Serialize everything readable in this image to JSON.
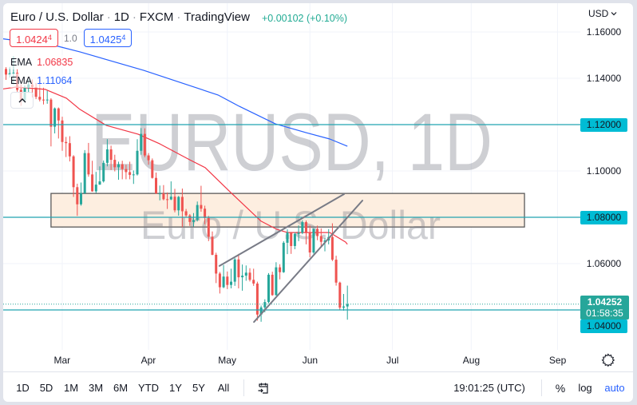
{
  "header": {
    "parts": [
      "Euro / U.S. Dollar",
      "1D",
      "FXCM",
      "TradingView"
    ],
    "separator": "·",
    "change": "+0.00102 (+0.10%)",
    "change_color": "#22ab94"
  },
  "quote": {
    "sell_main": "1.0424",
    "sell_frac": "4",
    "spread": "1.0",
    "buy_main": "1.0425",
    "buy_frac": "4"
  },
  "indicators": [
    {
      "name": "EMA",
      "value": "1.06835",
      "color": "#f23645"
    },
    {
      "name": "EMA",
      "value": "1.11064",
      "color": "#2962ff"
    }
  ],
  "icons": {
    "collapse": "chevron-up-icon",
    "currency_menu": "chevron-down-icon",
    "axis_settings": "gear-icon",
    "go_to_date": "calendar-goto-icon"
  },
  "watermark": {
    "line1": "EURUSD, 1D",
    "line2": "Euro / U.S. Dollar"
  },
  "price_axis": {
    "currency": "USD",
    "labels": [
      {
        "text": "1.16000",
        "value": 1.16,
        "highlight": false
      },
      {
        "text": "1.14000",
        "value": 1.14,
        "highlight": false
      },
      {
        "text": "1.12000",
        "value": 1.12,
        "highlight": true
      },
      {
        "text": "1.10000",
        "value": 1.1,
        "highlight": false
      },
      {
        "text": "1.08000",
        "value": 1.08,
        "highlight": true
      },
      {
        "text": "1.06000",
        "value": 1.06,
        "highlight": false
      },
      {
        "text": "1.04000",
        "value": 1.04,
        "highlight": true
      }
    ],
    "current": {
      "price": "1.04252",
      "countdown": "01:58:35",
      "value": 1.04252
    }
  },
  "time_axis": {
    "labels": [
      {
        "text": "Mar",
        "index": 15
      },
      {
        "text": "Apr",
        "index": 38
      },
      {
        "text": "May",
        "index": 59
      },
      {
        "text": "Jun",
        "index": 81
      },
      {
        "text": "Jul",
        "index": 103
      },
      {
        "text": "Aug",
        "index": 124
      },
      {
        "text": "Sep",
        "index": 147
      }
    ]
  },
  "toolbar": {
    "ranges": [
      "1D",
      "5D",
      "1M",
      "3M",
      "6M",
      "YTD",
      "1Y",
      "5Y",
      "All"
    ],
    "clock": "19:01:25 (UTC)",
    "percent": "%",
    "log": "log",
    "auto": "auto"
  },
  "colors": {
    "up": "#26a69a",
    "down": "#ef5350",
    "ema_fast": "#f23645",
    "ema_slow": "#2962ff",
    "level_line": "#22a3b0",
    "zone_fill": "#fdeee0",
    "zone_border": "#5a5a5a",
    "trendline": "#787b86",
    "grid": "#f0f3fa",
    "watermark": "#787b86"
  },
  "chart_data": {
    "type": "candlestick",
    "title": "Euro / U.S. Dollar · 1D · FXCM · TradingView",
    "xlabel": "",
    "ylabel": "USD",
    "ylim": [
      1.0228,
      1.1724
    ],
    "y_ticks": [
      1.16,
      1.14,
      1.12,
      1.1,
      1.08,
      1.06,
      1.04
    ],
    "x_ticks": [
      {
        "label": "Mar",
        "index": 15
      },
      {
        "label": "Apr",
        "index": 38
      },
      {
        "label": "May",
        "index": 59
      },
      {
        "label": "Jun",
        "index": 81
      },
      {
        "label": "Jul",
        "index": 103
      },
      {
        "label": "Aug",
        "index": 124
      },
      {
        "label": "Sep",
        "index": 147
      }
    ],
    "grid": true,
    "candle_columns": [
      "open",
      "high",
      "low",
      "close"
    ],
    "candles": [
      [
        1.144,
        1.1448,
        1.1393,
        1.1416
      ],
      [
        1.1416,
        1.1449,
        1.1403,
        1.1422
      ],
      [
        1.1422,
        1.1495,
        1.1374,
        1.1424
      ],
      [
        1.1424,
        1.144,
        1.1342,
        1.135
      ],
      [
        1.135,
        1.1374,
        1.1281,
        1.1306
      ],
      [
        1.1306,
        1.1369,
        1.1296,
        1.1358
      ],
      [
        1.1358,
        1.1395,
        1.1337,
        1.1373
      ],
      [
        1.1373,
        1.1395,
        1.1317,
        1.1362
      ],
      [
        1.1362,
        1.138,
        1.131,
        1.132
      ],
      [
        1.132,
        1.1395,
        1.13,
        1.1308
      ],
      [
        1.1308,
        1.136,
        1.1287,
        1.1307
      ],
      [
        1.1307,
        1.1346,
        1.129,
        1.1308
      ],
      [
        1.1308,
        1.1314,
        1.1106,
        1.1191
      ],
      [
        1.1191,
        1.1274,
        1.1162,
        1.127
      ],
      [
        1.127,
        1.1274,
        1.114,
        1.1218
      ],
      [
        1.1218,
        1.1234,
        1.1087,
        1.1125
      ],
      [
        1.1125,
        1.1147,
        1.106,
        1.112
      ],
      [
        1.112,
        1.115,
        1.1041,
        1.1063
      ],
      [
        1.1063,
        1.1068,
        1.0888,
        1.093
      ],
      [
        1.093,
        1.0945,
        1.0806,
        1.0856
      ],
      [
        1.0856,
        1.095,
        1.085,
        1.0904
      ],
      [
        1.0904,
        1.109,
        1.09,
        1.1077
      ],
      [
        1.1077,
        1.1121,
        1.0975,
        1.0985
      ],
      [
        1.0985,
        1.1044,
        1.091,
        1.0912
      ],
      [
        1.0912,
        1.0996,
        1.0905,
        1.0941
      ],
      [
        1.0941,
        1.102,
        1.094,
        1.0955
      ],
      [
        1.0955,
        1.1045,
        1.095,
        1.1035
      ],
      [
        1.1035,
        1.1137,
        1.102,
        1.1093
      ],
      [
        1.1093,
        1.1109,
        1.1004,
        1.1048
      ],
      [
        1.1048,
        1.107,
        1.0998,
        1.1016
      ],
      [
        1.1016,
        1.104,
        1.0962,
        1.1029
      ],
      [
        1.1029,
        1.1044,
        1.0964,
        1.1008
      ],
      [
        1.1008,
        1.1027,
        1.0964,
        1.0995
      ],
      [
        1.0995,
        1.104,
        1.0964,
        1.0983
      ],
      [
        1.0983,
        1.1002,
        1.0944,
        1.0985
      ],
      [
        1.0985,
        1.1137,
        1.098,
        1.1087
      ],
      [
        1.1087,
        1.1185,
        1.107,
        1.116
      ],
      [
        1.116,
        1.1184,
        1.1059,
        1.1067
      ],
      [
        1.1067,
        1.1077,
        1.1027,
        1.1046
      ],
      [
        1.1046,
        1.1054,
        1.0967,
        1.097
      ],
      [
        1.097,
        1.0993,
        1.0901,
        1.0903
      ],
      [
        1.0903,
        1.0937,
        1.0873,
        1.0903
      ],
      [
        1.0903,
        1.0939,
        1.0873,
        1.0878
      ],
      [
        1.0878,
        1.0907,
        1.0836,
        1.0877
      ],
      [
        1.0877,
        1.0955,
        1.0874,
        1.0889
      ],
      [
        1.0889,
        1.0923,
        1.0821,
        1.083
      ],
      [
        1.083,
        1.0892,
        1.0807,
        1.0888
      ],
      [
        1.0888,
        1.0924,
        1.0757,
        1.0826
      ],
      [
        1.0826,
        1.0836,
        1.08,
        1.0808
      ],
      [
        1.0808,
        1.0814,
        1.0763,
        1.078
      ],
      [
        1.078,
        1.0818,
        1.076,
        1.0788
      ],
      [
        1.0788,
        1.0868,
        1.0782,
        1.0853
      ],
      [
        1.0853,
        1.0936,
        1.0824,
        1.0837
      ],
      [
        1.0837,
        1.085,
        1.077,
        1.0797
      ],
      [
        1.0797,
        1.0806,
        1.0697,
        1.0716
      ],
      [
        1.0716,
        1.0739,
        1.0636,
        1.0638
      ],
      [
        1.0638,
        1.0647,
        1.0516,
        1.0557
      ],
      [
        1.0557,
        1.0564,
        1.0471,
        1.0498
      ],
      [
        1.0498,
        1.0594,
        1.0494,
        1.0544
      ],
      [
        1.0544,
        1.0566,
        1.049,
        1.0508
      ],
      [
        1.0508,
        1.0578,
        1.0493,
        1.0522
      ],
      [
        1.0522,
        1.0624,
        1.0504,
        1.0618
      ],
      [
        1.0618,
        1.0642,
        1.0493,
        1.0541
      ],
      [
        1.0541,
        1.0596,
        1.0483,
        1.0548
      ],
      [
        1.0548,
        1.0592,
        1.0526,
        1.0561
      ],
      [
        1.0561,
        1.058,
        1.0523,
        1.053
      ],
      [
        1.053,
        1.0578,
        1.0504,
        1.0514
      ],
      [
        1.0514,
        1.0522,
        1.0354,
        1.038
      ],
      [
        1.038,
        1.0419,
        1.0349,
        1.0411
      ],
      [
        1.0411,
        1.0446,
        1.039,
        1.0434
      ],
      [
        1.0434,
        1.0559,
        1.0428,
        1.0552
      ],
      [
        1.0552,
        1.0565,
        1.0461,
        1.0464
      ],
      [
        1.0464,
        1.0606,
        1.0462,
        1.0584
      ],
      [
        1.0584,
        1.0597,
        1.0532,
        1.0563
      ],
      [
        1.0563,
        1.0697,
        1.056,
        1.069
      ],
      [
        1.069,
        1.0748,
        1.0641,
        1.0734
      ],
      [
        1.0734,
        1.0737,
        1.0642,
        1.0676
      ],
      [
        1.0676,
        1.0735,
        1.0662,
        1.0728
      ],
      [
        1.0728,
        1.0765,
        1.0697,
        1.0733
      ],
      [
        1.0733,
        1.0787,
        1.0727,
        1.0779
      ],
      [
        1.0779,
        1.0786,
        1.0683,
        1.0734
      ],
      [
        1.0734,
        1.0764,
        1.0627,
        1.0648
      ],
      [
        1.0648,
        1.0753,
        1.0643,
        1.075
      ],
      [
        1.075,
        1.0764,
        1.0701,
        1.0719
      ],
      [
        1.0719,
        1.0752,
        1.0676,
        1.0694
      ],
      [
        1.0694,
        1.071,
        1.0653,
        1.07
      ],
      [
        1.07,
        1.0749,
        1.0683,
        1.0715
      ],
      [
        1.0715,
        1.0774,
        1.0611,
        1.0617
      ],
      [
        1.0617,
        1.0634,
        1.0505,
        1.0518
      ],
      [
        1.0518,
        1.0522,
        1.0399,
        1.041
      ],
      [
        1.041,
        1.0469,
        1.0397,
        1.0415
      ],
      [
        1.0415,
        1.0505,
        1.0358,
        1.0425
      ]
    ],
    "series": [
      {
        "name": "EMA",
        "value": 1.06835,
        "color": "#f23645",
        "points": [
          [
            -1.6,
            1.1352
          ],
          [
            2.7,
            1.1362
          ],
          [
            10.5,
            1.1352
          ],
          [
            16.1,
            1.1314
          ],
          [
            19.7,
            1.1266
          ],
          [
            26.7,
            1.1197
          ],
          [
            35.2,
            1.1159
          ],
          [
            41.0,
            1.1117
          ],
          [
            49.0,
            1.1048
          ],
          [
            53.1,
            1.1014
          ],
          [
            59.7,
            1.091
          ],
          [
            68.0,
            1.0783
          ],
          [
            72.2,
            1.0748
          ],
          [
            75.0,
            1.0734
          ],
          [
            86.3,
            1.0734
          ],
          [
            90.5,
            1.0693
          ],
          [
            91.0,
            1.06835
          ]
        ]
      },
      {
        "name": "EMA",
        "value": 1.11064,
        "color": "#2962ff",
        "points": [
          [
            -1.6,
            1.1572
          ],
          [
            13.9,
            1.1538
          ],
          [
            19.7,
            1.1514
          ],
          [
            36.7,
            1.1434
          ],
          [
            56.5,
            1.1328
          ],
          [
            62.2,
            1.1279
          ],
          [
            71.8,
            1.1203
          ],
          [
            79.9,
            1.1166
          ],
          [
            86.3,
            1.1138
          ],
          [
            91.0,
            1.11064
          ]
        ]
      }
    ],
    "horizontal_levels": [
      1.12,
      1.08,
      1.04
    ],
    "zone": {
      "from_index": 12,
      "to_index": 138.2,
      "top": 1.0903,
      "bottom": 1.0758
    },
    "trendlines": [
      {
        "name": "rising-wedge-upper",
        "from": [
          56.9,
          1.059
        ],
        "to": [
          90.1,
          1.09
        ]
      },
      {
        "name": "rising-wedge-lower",
        "from": [
          66.1,
          1.0348
        ],
        "to": [
          95.0,
          1.0872
        ]
      }
    ],
    "last_price": 1.04252,
    "legend_position": "top-left"
  }
}
